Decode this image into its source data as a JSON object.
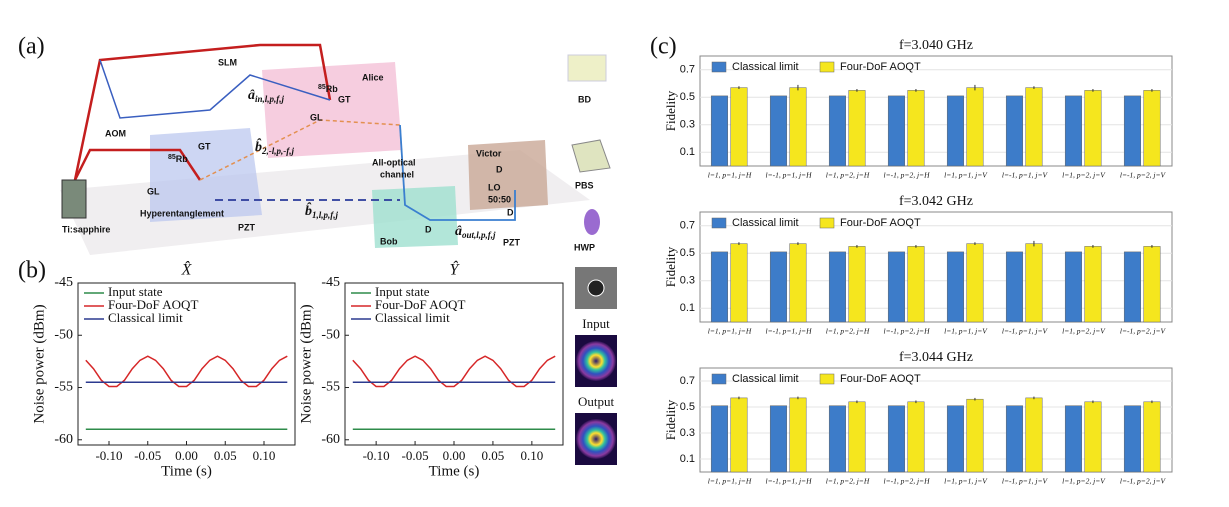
{
  "panel_labels": [
    "(a)",
    "(b)",
    "(c)"
  ],
  "diagram": {
    "laser": "Ti:sapphire",
    "aom": "AOM",
    "slm": "SLM",
    "alice": "Alice",
    "bob": "Bob",
    "victor": "Victor",
    "gt_alice": "GT",
    "gl_alice": "GL",
    "gt_source": "GT",
    "gl_source": "GL",
    "rb_alice": {
      "isotope": "85",
      "element": "Rb"
    },
    "rb_source": {
      "isotope": "85",
      "element": "Rb"
    },
    "source": "Hyperentanglement",
    "pzt_source": "PZT",
    "pzt_victor": "PZT",
    "detector_bob": "D",
    "detector_victor": "D",
    "detector_victor2": "D",
    "channel": [
      "All-optical",
      "channel"
    ],
    "lo": "LO",
    "splitter": "50:50",
    "mode_in": {
      "base": "â",
      "sub": "in,l,p,f,j"
    },
    "mode_b2": {
      "base": "b̂",
      "sub": "2,-l,p,-f,j"
    },
    "mode_b1": {
      "base": "b̂",
      "sub": "1,l,p,f,j"
    },
    "mode_out": {
      "base": "â",
      "sub": "out,l,p,f,j"
    },
    "legend": [
      "BD",
      "PBS",
      "HWP"
    ]
  },
  "insets": [
    "Input",
    "Output"
  ],
  "chart_data": [
    {
      "type": "line",
      "title": "X̂",
      "xlabel": "Time (s)",
      "ylabel": "Noise power (dBm)",
      "x": [
        -0.13,
        -0.12,
        -0.11,
        -0.1,
        -0.09,
        -0.08,
        -0.07,
        -0.06,
        -0.05,
        -0.04,
        -0.03,
        -0.02,
        -0.01,
        0,
        0.01,
        0.02,
        0.03,
        0.04,
        0.05,
        0.06,
        0.07,
        0.08,
        0.09,
        0.1,
        0.11,
        0.12,
        0.13
      ],
      "xlim": [
        -0.14,
        0.14
      ],
      "xticks": [
        {
          "value": -0.1,
          "label": "-0.10"
        },
        {
          "value": -0.05,
          "label": "-0.05"
        },
        {
          "value": 0,
          "label": "0.00"
        },
        {
          "value": 0.05,
          "label": "0.05"
        },
        {
          "value": 0.1,
          "label": "0.10"
        }
      ],
      "ylim": [
        -60.5,
        -45
      ],
      "yticks": [
        -45,
        -50,
        -55,
        -60
      ],
      "legend": "upper left",
      "series": [
        {
          "name": "Input state",
          "color": "#2e8b4a",
          "values": [
            -59,
            -59,
            -59,
            -59,
            -59,
            -59,
            -59,
            -59,
            -59,
            -59,
            -59,
            -59,
            -59,
            -59,
            -59,
            -59,
            -59,
            -59,
            -59,
            -59,
            -59,
            -59,
            -59,
            -59,
            -59,
            -59,
            -59
          ]
        },
        {
          "name": "Four-DoF AOQT",
          "color": "#d62728",
          "values": [
            -52.4,
            -53.2,
            -54.3,
            -54.9,
            -54.9,
            -54.3,
            -53.2,
            -52.4,
            -52.0,
            -52.4,
            -53.2,
            -54.3,
            -54.9,
            -54.9,
            -54.3,
            -53.2,
            -52.4,
            -52.0,
            -52.4,
            -53.2,
            -54.3,
            -54.9,
            -54.9,
            -54.3,
            -53.2,
            -52.4,
            -52.0
          ]
        },
        {
          "name": "Classical limit",
          "color": "#2b3a8f",
          "values": [
            -54.5,
            -54.5,
            -54.5,
            -54.5,
            -54.5,
            -54.5,
            -54.5,
            -54.5,
            -54.5,
            -54.5,
            -54.5,
            -54.5,
            -54.5,
            -54.5,
            -54.5,
            -54.5,
            -54.5,
            -54.5,
            -54.5,
            -54.5,
            -54.5,
            -54.5,
            -54.5,
            -54.5,
            -54.5,
            -54.5,
            -54.5
          ]
        }
      ]
    },
    {
      "type": "line",
      "title": "Ŷ",
      "xlabel": "Time (s)",
      "ylabel": "Noise power (dBm)",
      "x": [
        -0.13,
        -0.12,
        -0.11,
        -0.1,
        -0.09,
        -0.08,
        -0.07,
        -0.06,
        -0.05,
        -0.04,
        -0.03,
        -0.02,
        -0.01,
        0,
        0.01,
        0.02,
        0.03,
        0.04,
        0.05,
        0.06,
        0.07,
        0.08,
        0.09,
        0.1,
        0.11,
        0.12,
        0.13
      ],
      "xlim": [
        -0.14,
        0.14
      ],
      "xticks": [
        {
          "value": -0.1,
          "label": "-0.10"
        },
        {
          "value": -0.05,
          "label": "-0.05"
        },
        {
          "value": 0,
          "label": "0.00"
        },
        {
          "value": 0.05,
          "label": "0.05"
        },
        {
          "value": 0.1,
          "label": "0.10"
        }
      ],
      "ylim": [
        -60.5,
        -45
      ],
      "yticks": [
        -45,
        -50,
        -55,
        -60
      ],
      "legend": "upper left",
      "series": [
        {
          "name": "Input state",
          "color": "#2e8b4a",
          "values": [
            -59,
            -59,
            -59,
            -59,
            -59,
            -59,
            -59,
            -59,
            -59,
            -59,
            -59,
            -59,
            -59,
            -59,
            -59,
            -59,
            -59,
            -59,
            -59,
            -59,
            -59,
            -59,
            -59,
            -59,
            -59,
            -59,
            -59
          ]
        },
        {
          "name": "Four-DoF AOQT",
          "color": "#d62728",
          "values": [
            -52.4,
            -53.2,
            -54.3,
            -54.9,
            -54.9,
            -54.3,
            -53.2,
            -52.4,
            -52.0,
            -52.4,
            -53.2,
            -54.3,
            -54.9,
            -54.9,
            -54.3,
            -53.2,
            -52.4,
            -52.0,
            -52.4,
            -53.2,
            -54.3,
            -54.9,
            -54.9,
            -54.3,
            -53.2,
            -52.4,
            -52.0
          ]
        },
        {
          "name": "Classical limit",
          "color": "#2b3a8f",
          "values": [
            -54.5,
            -54.5,
            -54.5,
            -54.5,
            -54.5,
            -54.5,
            -54.5,
            -54.5,
            -54.5,
            -54.5,
            -54.5,
            -54.5,
            -54.5,
            -54.5,
            -54.5,
            -54.5,
            -54.5,
            -54.5,
            -54.5,
            -54.5,
            -54.5,
            -54.5,
            -54.5,
            -54.5,
            -54.5,
            -54.5,
            -54.5
          ]
        }
      ]
    },
    {
      "type": "bar",
      "title": "f=3.040 GHz",
      "ylabel": "Fidelity",
      "categories": [
        "l=1, p=1, j=H",
        "l=-1, p=1, j=H",
        "l=1, p=2, j=H",
        "l=-1, p=2, j=H",
        "l=1, p=1, j=V",
        "l=-1, p=1, j=V",
        "l=1, p=2, j=V",
        "l=-1, p=2, j=V"
      ],
      "ylim": [
        0,
        0.8
      ],
      "yticks": [
        0.1,
        0.3,
        0.5,
        0.7
      ],
      "legend": "upper left",
      "series": [
        {
          "name": "Classical limit",
          "color": "#3d7cc9",
          "values": [
            0.51,
            0.51,
            0.51,
            0.51,
            0.51,
            0.51,
            0.51,
            0.51
          ]
        },
        {
          "name": "Four-DoF AOQT",
          "color": "#f5e61e",
          "values": [
            0.57,
            0.57,
            0.55,
            0.55,
            0.57,
            0.57,
            0.55,
            0.55
          ],
          "errors": [
            0.01,
            0.02,
            0.01,
            0.01,
            0.02,
            0.01,
            0.01,
            0.01
          ]
        }
      ]
    },
    {
      "type": "bar",
      "title": "f=3.042 GHz",
      "ylabel": "Fidelity",
      "categories": [
        "l=1, p=1, j=H",
        "l=-1, p=1, j=H",
        "l=1, p=2, j=H",
        "l=-1, p=2, j=H",
        "l=1, p=1, j=V",
        "l=-1, p=1, j=V",
        "l=1, p=2, j=V",
        "l=-1, p=2, j=V"
      ],
      "ylim": [
        0,
        0.8
      ],
      "yticks": [
        0.1,
        0.3,
        0.5,
        0.7
      ],
      "legend": "upper left",
      "series": [
        {
          "name": "Classical limit",
          "color": "#3d7cc9",
          "values": [
            0.51,
            0.51,
            0.51,
            0.51,
            0.51,
            0.51,
            0.51,
            0.51
          ]
        },
        {
          "name": "Four-DoF AOQT",
          "color": "#f5e61e",
          "values": [
            0.57,
            0.57,
            0.55,
            0.55,
            0.57,
            0.57,
            0.55,
            0.55
          ],
          "errors": [
            0.01,
            0.01,
            0.01,
            0.01,
            0.01,
            0.02,
            0.01,
            0.01
          ]
        }
      ]
    },
    {
      "type": "bar",
      "title": "f=3.044 GHz",
      "ylabel": "Fidelity",
      "categories": [
        "l=1, p=1, j=H",
        "l=-1, p=1, j=H",
        "l=1, p=2, j=H",
        "l=-1, p=2, j=H",
        "l=1, p=1, j=V",
        "l=-1, p=1, j=V",
        "l=1, p=2, j=V",
        "l=-1, p=2, j=V"
      ],
      "ylim": [
        0,
        0.8
      ],
      "yticks": [
        0.1,
        0.3,
        0.5,
        0.7
      ],
      "legend": "upper left",
      "series": [
        {
          "name": "Classical limit",
          "color": "#3d7cc9",
          "values": [
            0.51,
            0.51,
            0.51,
            0.51,
            0.51,
            0.51,
            0.51,
            0.51
          ]
        },
        {
          "name": "Four-DoF AOQT",
          "color": "#f5e61e",
          "values": [
            0.57,
            0.57,
            0.54,
            0.54,
            0.56,
            0.57,
            0.54,
            0.54
          ],
          "errors": [
            0.01,
            0.01,
            0.01,
            0.01,
            0.01,
            0.01,
            0.01,
            0.01
          ]
        }
      ]
    }
  ]
}
